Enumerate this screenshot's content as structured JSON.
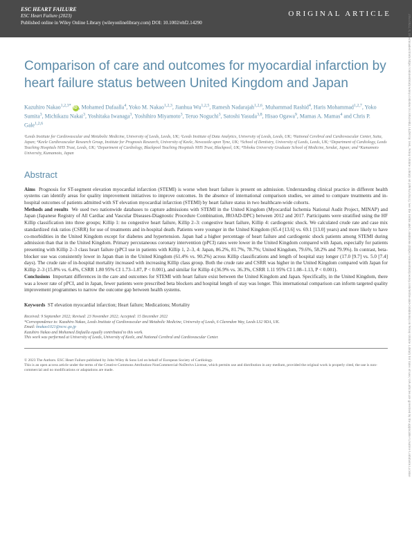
{
  "header": {
    "journal_name": "ESC HEART FAILURE",
    "journal_cite": "ESC Heart Failure (2023)",
    "pub_line": "Published online in Wiley Online Library (wileyonlinelibrary.com) DOI: 10.1002/ehf2.14290",
    "article_type": "ORIGINAL ARTICLE"
  },
  "title": "Comparison of care and outcomes for myocardial infarction by heart failure status between United Kingdom and Japan",
  "authors_html": "Kazuhiro Nakao<sup>1,2,3*</sup> ORCID, Mohamed Dafaalla<sup>4</sup>, Yoko M. Nakao<sup>1,2,3</sup>, Jianhua Wu<sup>1,2,5</sup>, Ramesh Nadarajah<sup>1,2,6</sup>, Muhammad Rashid<sup>4</sup>, Haris Mohammad<sup>1,2,7</sup>, Yoko Sumita<sup>3</sup>, Michikazu Nakai<sup>3</sup>, Yoshitaka Iwanaga<sup>3</sup>, Yoshihiro Miyamoto<sup>3</sup>, Teruo Noguchi<sup>3</sup>, Satoshi Yasuda<sup>3,8</sup>, Hisao Ogawa<sup>9</sup>, Mamas A. Mamas<sup>4</sup> and Chris P. Gale<sup>1,2,6</sup>",
  "affiliations": "¹Leeds Institute for Cardiovascular and Metabolic Medicine, University of Leeds, Leeds, UK; ²Leeds Institute of Data Analytics, University of Leeds, Leeds, UK; ³National Cerebral and Cardiovascular Center, Suita, Japan; ⁴Keele Cardiovascular Research Group, Institute for Prognosis Research, University of Keele, Newcastle upon Tyne, UK; ⁵School of Dentistry, University of Leeds, Leeds, UK; ⁶Department of Cardiology, Leeds Teaching Hospitals NHS Trust, Leeds, UK; ⁷Department of Cardiology, Blackpool Teaching Hospitals NHS Trust, Blackpool, UK; ⁸Tohoku University Graduate School of Medicine, Sendai, Japan; and ⁹Kumamoto University, Kumamoto, Japan",
  "abstract": {
    "heading": "Abstract",
    "aims_label": "Aims",
    "aims": "Prognosis for ST-segment elevation myocardial infarction (STEMI) is worse when heart failure is present on admission. Understanding clinical practice in different health systems can identify areas for quality improvement initiatives to improve outcomes. In the absence of international comparison studies, we aimed to compare treatments and in-hospital outcomes of patients admitted with ST elevation myocardial infarction (STEMI) by heart failure status in two healthcare-wide cohorts.",
    "methods_label": "Methods and results",
    "methods": "We used two nationwide databases to capture admissions with STEMI in the United Kingdom (Myocardial Ischemia National Audit Project, MINAP) and Japan (Japanese Registry of All Cardiac and Vascular Diseases-Diagnostic Procedure Combination, JROAD-DPC) between 2012 and 2017. Participants were stratified using the HF Killip classification into three groups; Killip 1: no congestive heart failure, Killip 2–3: congestive heart failure, Killip 4: cardiogenic shock. We calculated crude rate and case mix standardized risk ratios (CSRR) for use of treatments and in-hospital death. Patients were younger in the United Kingdom (65.4 [13.6] vs. 69.1 [13.0] years) and more likely to have co-morbidities in the United Kingdom except for diabetes and hypertension. Japan had a higher percentage of heart failure and cardiogenic shock patients among STEMI during admission than that in the United Kingdom. Primary percutaneous coronary intervention (pPCI) rates were lower in the United Kingdom compared with Japan, especially for patients presenting with Killip 2–3 class heart failure (pPCI use in patients with Killip 1, 2–3, 4: Japan, 86.2%, 81.7%, 78.7%; United Kingdom, 79.6%, 58.2% and 79.9%). In contrast, beta-blocker use was consistently lower in Japan than in the United Kingdom (61.4% vs. 90.2%) across Killip classifications and length of hospital stay longer (17.0 [9.7] vs. 5.0 [7.4] days). The crude rate of in-hospital mortality increased with increasing Killip class group. Both the crude rate and CSRR was higher in the United Kingdom compared with Japan for Killip 2–3 (15.8% vs. 6.4%, CSRR 1.80 95% CI 1.73–1.87, P < 0.001), and similar for Killip 4 (36.9% vs. 36.3%, CSRR 1.11 95% CI 1.08–1.13, P < 0.001).",
    "conclusions_label": "Conclusions",
    "conclusions": "Important differences in the care and outcomes for STEMI with heart failure exist between the United Kingdom and Japan. Specifically, in the United Kingdom, there was a lower rate of pPCI, and in Japan, fewer patients were prescribed beta blockers and hospital length of stay was longer. This international comparison can inform targeted quality improvement programmes to narrow the outcome gap between health systems."
  },
  "keywords": {
    "label": "Keywords",
    "text": "ST elevation myocardial infarction; Heart failure; Medications; Mortality"
  },
  "history": {
    "dates": "Received: 9 September 2022; Revised: 23 November 2022; Accepted: 15 December 2022",
    "correspondence": "*Correspondence to: Kazuhiro Nakao, Leeds Institute of Cardiovascular and Metabolic Medicine, University of Leeds, 6 Clarendon Way, Leeds LS2 9DA, UK.",
    "email_label": "Email: ",
    "email": "knakao1021@ncvc.go.jp",
    "contrib": "Kazuhiro Nakao and Mohamed Dafaalla equally contributed to this work.",
    "performed": "This work was performed at University of Leeds, University of Keele, and National Cerebral and Cardiovascular Center."
  },
  "footer": {
    "copyright": "© 2023 The Authors. ESC Heart Failure published by John Wiley & Sons Ltd on behalf of European Society of Cardiology.",
    "license": "This is an open access article under the terms of the Creative Commons Attribution-NonCommercial-NoDerivs License, which permits use and distribution in any medium, provided the original work is properly cited, the use is non-commercial and no modifications or adaptations are made."
  },
  "vertical_note": "20551822, 0, Downloaded from https://onlinelibrary.wiley.com/doi/10.1002/ehf2.14290 by Test, Wiley Online Library on [08/02/2023]. See the Terms and Conditions (https://onlinelibrary.wiley.com/terms-and-conditions) on Wiley Online Library for rules of use; OA articles are governed by the applicable Creative Commons License"
}
